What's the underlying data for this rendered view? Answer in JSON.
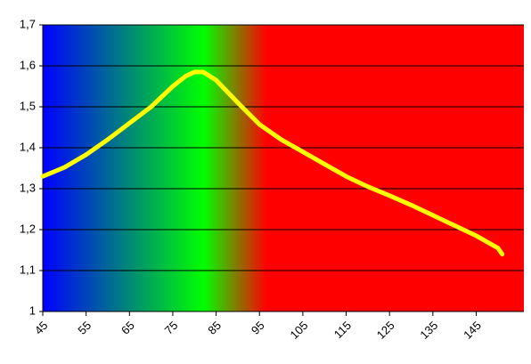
{
  "chart_data": {
    "type": "line",
    "x": [
      45,
      50,
      55,
      60,
      65,
      70,
      75,
      78,
      80,
      82,
      85,
      90,
      95,
      100,
      105,
      110,
      115,
      120,
      125,
      130,
      135,
      140,
      145,
      150,
      151
    ],
    "series": [
      {
        "color": "#ffff00",
        "values": [
          1.33,
          1.352,
          1.383,
          1.42,
          1.46,
          1.5,
          1.55,
          1.575,
          1.585,
          1.585,
          1.565,
          1.51,
          1.457,
          1.42,
          1.39,
          1.36,
          1.33,
          1.305,
          1.283,
          1.26,
          1.235,
          1.21,
          1.185,
          1.155,
          1.14
        ]
      }
    ],
    "xlim": [
      45,
      156
    ],
    "xticks": [
      45,
      55,
      65,
      75,
      85,
      95,
      105,
      115,
      125,
      135,
      145
    ],
    "ylim": [
      1,
      1.7
    ],
    "yticks": [
      1,
      {
        "value": 1.1,
        "label": "1,1"
      },
      {
        "value": 1.2,
        "label": "1,2"
      },
      {
        "value": 1.3,
        "label": "1,3"
      },
      {
        "value": 1.4,
        "label": "1,4"
      },
      {
        "value": 1.5,
        "label": "1,5"
      },
      {
        "value": 1.6,
        "label": "1,6"
      },
      {
        "value": 1.7,
        "label": "1,7"
      }
    ],
    "grid": true
  }
}
